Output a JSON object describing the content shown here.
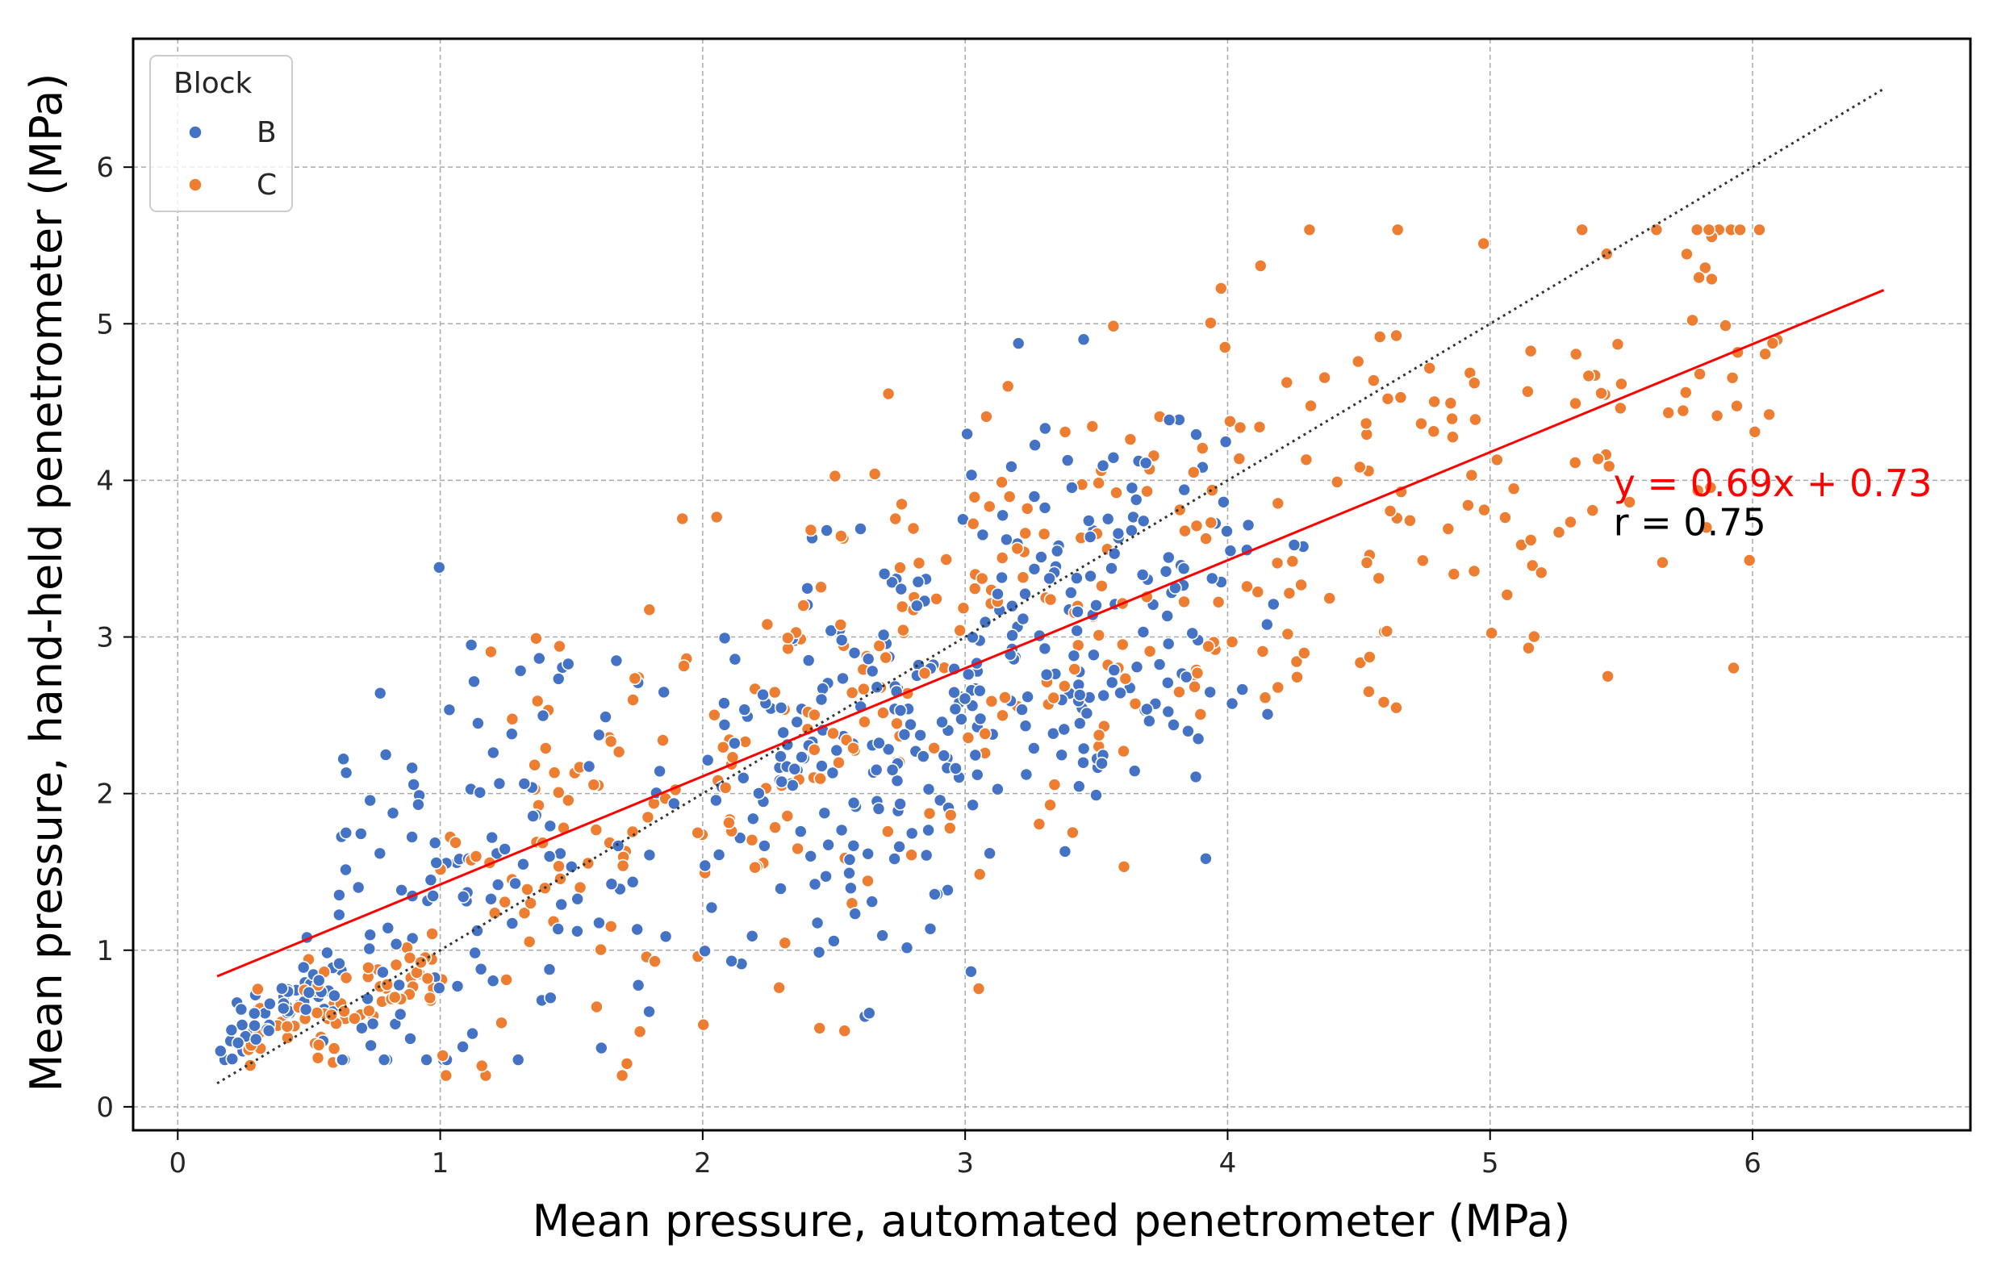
{
  "chart_data": {
    "type": "scatter",
    "xlabel": "Mean pressure, automated penetrometer (MPa)",
    "ylabel": "Mean pressure, hand-held penetrometer (MPa)",
    "xlim": [
      -0.17,
      6.83
    ],
    "ylim": [
      -0.15,
      6.82
    ],
    "xticks": [
      0,
      1,
      2,
      3,
      4,
      5,
      6
    ],
    "yticks": [
      0,
      1,
      2,
      3,
      4,
      5,
      6
    ],
    "grid": true,
    "legend": {
      "title": "Block",
      "placement": "top-left",
      "entries": [
        "B",
        "C"
      ]
    },
    "series": [
      {
        "name": "B",
        "color": "#4472C4",
        "edge": "#ffffff",
        "count": 520
      },
      {
        "name": "C",
        "color": "#ED7D31",
        "edge": "#ffffff",
        "count": 480
      }
    ],
    "regression": {
      "slope": 0.69,
      "intercept": 0.73,
      "x_range": [
        0.15,
        6.5
      ],
      "color": "#ff0000"
    },
    "identity_line": {
      "x_range": [
        0.15,
        6.5
      ],
      "style": "dotted",
      "color": "#333333"
    },
    "annotations": [
      {
        "text": "y = 0.69x + 0.73",
        "x": 5.47,
        "y": 3.9,
        "color": "#ff0000"
      },
      {
        "text": "r = 0.75",
        "x": 5.47,
        "y": 3.65,
        "color": "#000000"
      }
    ]
  }
}
